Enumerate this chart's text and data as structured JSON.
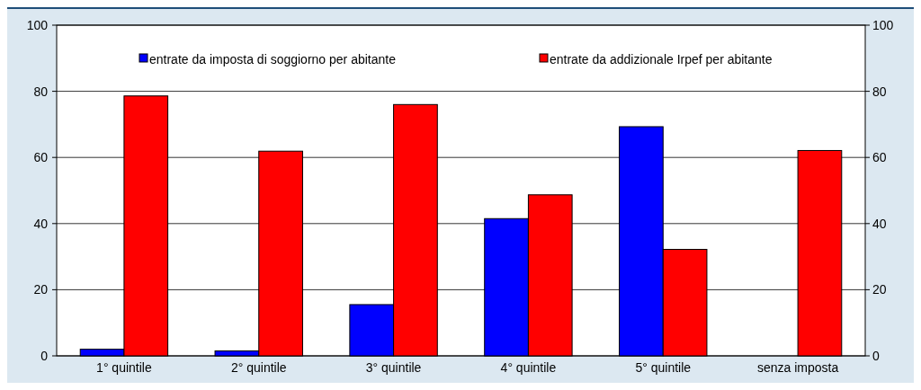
{
  "chart_data": {
    "type": "bar",
    "categories": [
      "1° quintile",
      "2° quintile",
      "3° quintile",
      "4° quintile",
      "5° quintile",
      "senza imposta"
    ],
    "series": [
      {
        "name": "entrate da imposta di soggiorno per abitante",
        "color": "#0000ff",
        "values": [
          2.0,
          1.5,
          15.5,
          41.5,
          69.3,
          null
        ]
      },
      {
        "name": "entrate da addizionale Irpef per abitante",
        "color": "#ff0000",
        "values": [
          78.6,
          61.9,
          76.0,
          48.7,
          32.2,
          62.1
        ]
      }
    ],
    "ylim": [
      0,
      100
    ],
    "yticks": [
      0,
      20,
      40,
      60,
      80,
      100
    ],
    "y2lim": [
      0,
      100
    ],
    "y2ticks": [
      0,
      20,
      40,
      60,
      80,
      100
    ],
    "grid": "y",
    "legend": "top"
  }
}
